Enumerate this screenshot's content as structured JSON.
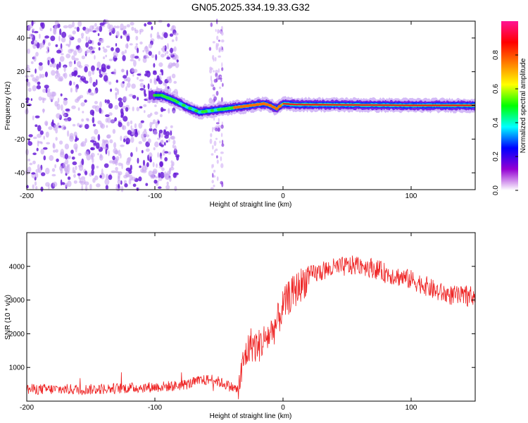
{
  "title": "GN05.2025.334.19.33.G32",
  "chart_data": [
    {
      "type": "heatmap",
      "title": "GN05.2025.334.19.33.G32",
      "xlabel": "Height of straight line (km)",
      "ylabel": "Frequency (Hz)",
      "xlim": [
        -200,
        150
      ],
      "ylim": [
        -50,
        50
      ],
      "xticks": [
        -200,
        -100,
        0,
        100
      ],
      "yticks": [
        -40,
        -20,
        0,
        20,
        40
      ],
      "colorbar": {
        "label": "Normalized spectral amplitude",
        "range": [
          0,
          1
        ],
        "ticks": [
          0.0,
          0.2,
          0.4,
          0.6,
          0.8
        ],
        "tick_labels": [
          "0.0",
          "0.2",
          "0.4",
          "0.6",
          "0.8"
        ],
        "colors": [
          "#ffffff",
          "#9400d3",
          "#0000ff",
          "#00ffff",
          "#00ff00",
          "#ffff00",
          "#ff7f00",
          "#ff0000",
          "#ff1493"
        ]
      },
      "ridge": {
        "x": [
          -105,
          -95,
          -85,
          -75,
          -65,
          -55,
          -45,
          -35,
          -25,
          -15,
          -10,
          -5,
          0,
          10,
          50,
          100,
          150
        ],
        "y": [
          6,
          6,
          3,
          -1,
          -4,
          -3,
          -2,
          -1,
          0,
          1,
          0,
          -2,
          1,
          0.5,
          0.3,
          0,
          0
        ]
      },
      "noise_region": {
        "x_from": -200,
        "x_to": -82,
        "extra_band": [
          -57,
          -47
        ]
      }
    },
    {
      "type": "line",
      "xlabel": "Height of straight line (km)",
      "ylabel": "SNR (10 * v/v)",
      "xlim": [
        -200,
        150
      ],
      "ylim": [
        0,
        5000
      ],
      "xticks": [
        -200,
        -100,
        0,
        100
      ],
      "yticks": [
        1000,
        2000,
        3000,
        4000
      ],
      "color": "#ee2222",
      "series": [
        {
          "name": "SNR",
          "x": [
            -200,
            -150,
            -100,
            -85,
            -75,
            -65,
            -55,
            -45,
            -35,
            -30,
            -25,
            -20,
            -15,
            -10,
            -5,
            0,
            5,
            10,
            20,
            30,
            40,
            50,
            60,
            70,
            80,
            90,
            100,
            110,
            120,
            130,
            140,
            150
          ],
          "y": [
            350,
            350,
            420,
            450,
            500,
            600,
            650,
            500,
            330,
            1300,
            1700,
            1600,
            1800,
            2000,
            2300,
            2800,
            3100,
            3300,
            3700,
            3850,
            3950,
            4000,
            4050,
            3950,
            3800,
            3700,
            3600,
            3450,
            3250,
            3150,
            3100,
            3150
          ]
        }
      ]
    }
  ]
}
